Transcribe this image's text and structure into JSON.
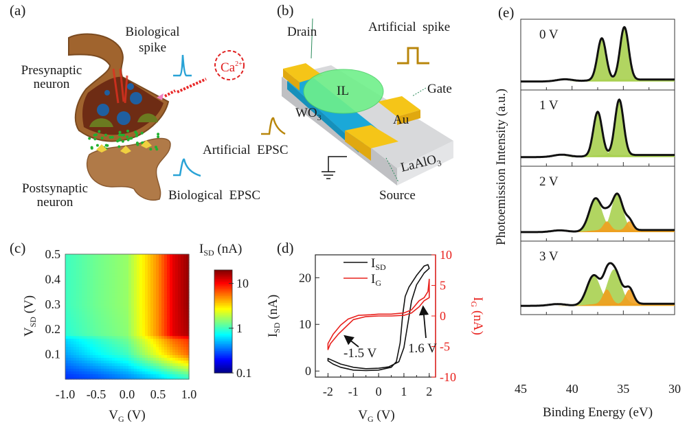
{
  "panel_a": {
    "label": "(a)",
    "biological_spike_1": "Biological",
    "biological_spike_2": "spike",
    "presynaptic_1": "Presynaptic",
    "presynaptic_2": "neuron",
    "postsynaptic_1": "Postsynaptic",
    "postsynaptic_2": "neuron",
    "biological_epsc": "Biological  EPSC",
    "ion": "Ca",
    "ion_charge": "2+",
    "colors": {
      "neuron": "#a0642e",
      "vesicle": "#1f5fa0",
      "spike": "#29a3d6",
      "calcium": "#e02020",
      "neurotransmitter": "#22b030"
    }
  },
  "panel_b": {
    "label": "(b)",
    "drain": "Drain",
    "artificial_spike": "Artificial  spike",
    "il": "IL",
    "gate": "Gate",
    "wo3": "WO",
    "wo3_sub": "3",
    "au": "Au",
    "artificial_epsc": "Artificial  EPSC",
    "laalo3": "LaAlO",
    "laalo3_sub": "3",
    "source": "Source",
    "colors": {
      "electrode": "#f5c518",
      "channel": "#1ba8d8",
      "ionic_liquid": "#5ee87a",
      "substrate": "#cfd0d2",
      "pulse": "#b8860b"
    }
  },
  "chart_data": [
    {
      "panel": "(c)",
      "type": "heatmap",
      "xlabel": "V",
      "xlabel_sub": "G",
      "xlabel_unit": " (V)",
      "ylabel": "V",
      "ylabel_sub": "SD",
      "ylabel_unit": " (V)",
      "xlim": [
        -1.0,
        1.0
      ],
      "ylim": [
        0.0,
        0.5
      ],
      "xticks": [
        "-1.0",
        "-0.5",
        "0.0",
        "0.5",
        "1.0"
      ],
      "yticks": [
        "0.1",
        "0.2",
        "0.3",
        "0.4",
        "0.5"
      ],
      "colorbar": {
        "title": "I",
        "title_sub": "SD",
        "title_unit": " (nA)",
        "scale": "log",
        "range": [
          0.1,
          20
        ],
        "ticks": [
          "10",
          "1",
          "0.1"
        ],
        "colormap": "jet"
      },
      "x": [
        -1.0,
        -0.5,
        0.0,
        0.5,
        0.75,
        1.0
      ],
      "y": [
        0.01,
        0.1,
        0.16,
        0.18,
        0.3,
        0.5
      ],
      "z_nA": [
        [
          0.25,
          0.3,
          0.4,
          0.6,
          0.8,
          1.0
        ],
        [
          0.45,
          0.7,
          1.0,
          2.5,
          4,
          6
        ],
        [
          0.6,
          0.9,
          1.3,
          3.5,
          6,
          8
        ],
        [
          0.9,
          1.2,
          1.5,
          5,
          12,
          16
        ],
        [
          1.0,
          1.3,
          1.6,
          5,
          12,
          18
        ],
        [
          1.0,
          1.3,
          1.6,
          5,
          12,
          18
        ]
      ]
    },
    {
      "panel": "(d)",
      "type": "line",
      "xlabel": "V",
      "xlabel_sub": "G",
      "xlabel_unit": " (V)",
      "ylabel": "I",
      "ylabel_sub": "SD",
      "ylabel_unit": " (nA)",
      "y2label": "I",
      "y2label_sub": "G",
      "y2label_unit": " (nA)",
      "xlim": [
        -2.5,
        2.25
      ],
      "ylim": [
        -1.3,
        24.9
      ],
      "y2lim": [
        -10,
        10
      ],
      "xticks": [
        "-2",
        "-1",
        "0",
        "1",
        "2"
      ],
      "yticks": [
        "0",
        "10",
        "20"
      ],
      "y2ticks": [
        "-10",
        "-5",
        "0",
        "5",
        "10"
      ],
      "legend_position": "top-left",
      "series": [
        {
          "name": "I",
          "name_sub": "SD",
          "axis": "left",
          "color": "#111111",
          "x": [
            0,
            0.5,
            0.7,
            0.85,
            0.95,
            1.05,
            1.2,
            1.5,
            1.8,
            1.95,
            2.0,
            1.8,
            1.5,
            1.3,
            1.15,
            1.0,
            0.8,
            0.4,
            0,
            -0.5,
            -1,
            -1.5,
            -2,
            -2,
            -1.8,
            -1.5,
            -1,
            -0.5,
            0
          ],
          "y": [
            0.2,
            0.8,
            2,
            6,
            12,
            16,
            18,
            20.5,
            22.5,
            22.8,
            22,
            21,
            18.5,
            15,
            10,
            5,
            2,
            0.9,
            0.6,
            0.5,
            0.8,
            1.5,
            2.7,
            2.2,
            1.5,
            0.8,
            0.2,
            0.1,
            0.2
          ]
        },
        {
          "name": "I",
          "name_sub": "G",
          "axis": "right",
          "color": "#e8201c",
          "x": [
            0,
            0.5,
            1,
            1.3,
            1.6,
            1.8,
            1.95,
            2,
            2,
            1.8,
            1.6,
            1.3,
            1,
            0.5,
            0,
            -0.5,
            -1,
            -1.3,
            -1.6,
            -1.9,
            -2,
            -2,
            -1.8,
            -1.5,
            -1.2,
            -0.8,
            -0.3,
            0
          ],
          "y": [
            0.3,
            0.3,
            0.5,
            1,
            2.5,
            3,
            4,
            6,
            3,
            2.5,
            1.5,
            0.5,
            0.1,
            0,
            0,
            -0.1,
            -0.6,
            -1.8,
            -3,
            -4.5,
            -5.5,
            -4.5,
            -3,
            -1.5,
            -0.5,
            0.1,
            0.2,
            0.3
          ]
        }
      ],
      "annotations": [
        {
          "text": "-1.5 V",
          "x": -1.5
        },
        {
          "text": "1.6 V",
          "x": 1.6
        }
      ]
    },
    {
      "panel": "(e)",
      "type": "area",
      "xlabel": "Binding Energy (eV)",
      "ylabel": "Photoemission Intensity (a.u.)",
      "xlim": [
        45,
        30
      ],
      "xticks": [
        "45",
        "40",
        "35",
        "30"
      ],
      "colors": {
        "component_main": "#a8d050",
        "component_minor": "#f0a020",
        "envelope": "#111111"
      },
      "spectra": [
        {
          "label": "0 V",
          "bump": [
            40.7,
            0.04
          ],
          "main": [
            [
              37.1,
              0.75,
              0.42
            ],
            [
              34.9,
              0.95,
              0.42
            ]
          ],
          "minor": []
        },
        {
          "label": "1 V",
          "bump": [
            41.0,
            0.04
          ],
          "main": [
            [
              37.5,
              0.73,
              0.42
            ],
            [
              35.4,
              0.93,
              0.42
            ]
          ],
          "minor": []
        },
        {
          "label": "2 V",
          "bump": [
            41.2,
            0.03
          ],
          "main": [
            [
              37.7,
              0.55,
              0.62
            ],
            [
              35.6,
              0.62,
              0.55
            ]
          ],
          "minor": [
            [
              36.6,
              0.15,
              0.35
            ],
            [
              34.4,
              0.15,
              0.35
            ]
          ]
        },
        {
          "label": "3 V",
          "bump": [
            41.4,
            0.03
          ],
          "main": [
            [
              37.9,
              0.5,
              0.65
            ],
            [
              35.9,
              0.6,
              0.65
            ]
          ],
          "minor": [
            [
              36.6,
              0.25,
              0.4
            ],
            [
              34.4,
              0.25,
              0.4
            ]
          ]
        }
      ]
    }
  ]
}
